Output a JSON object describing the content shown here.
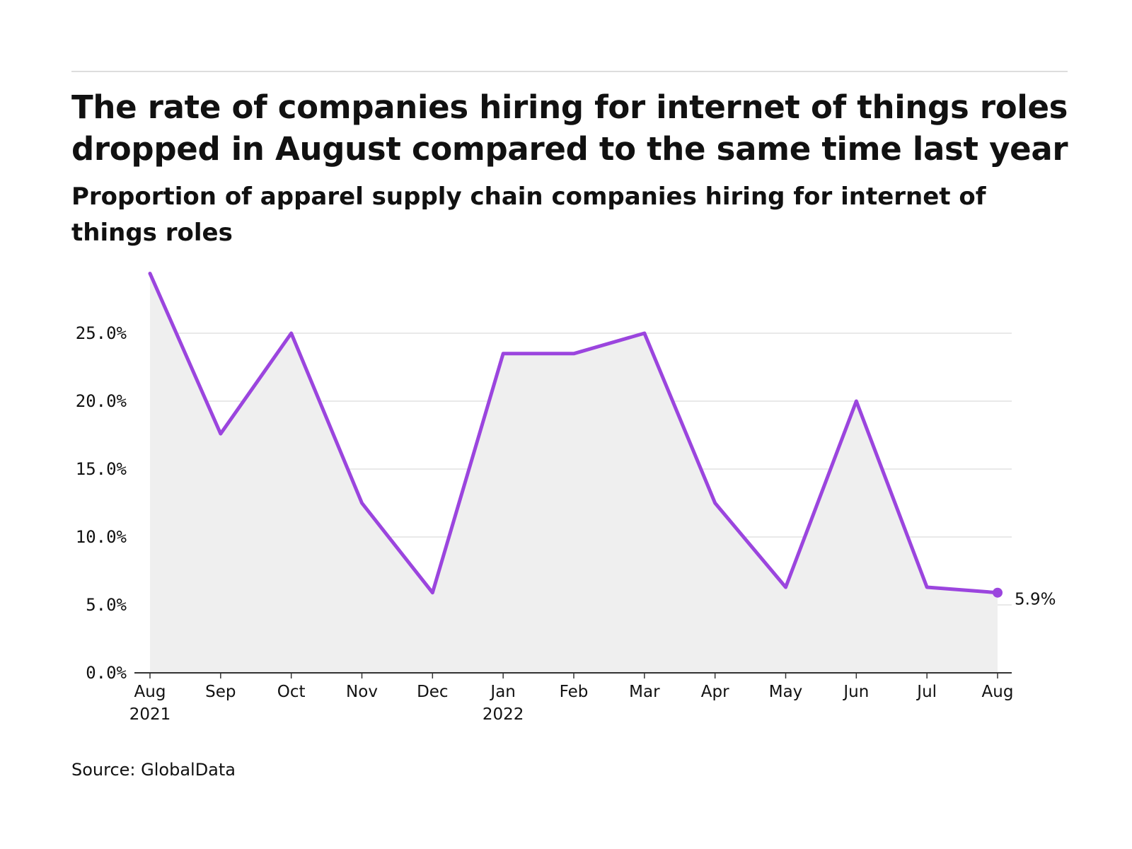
{
  "title": "The rate of companies hiring for internet of things roles dropped in August compared to the same time last year",
  "subtitle": "Proportion of apparel supply chain companies hiring for internet of things roles",
  "source": "Source: GlobalData",
  "colors": {
    "line": "#9b45de",
    "area": "#efefef",
    "grid": "#e2e2e2",
    "axis": "#333333"
  },
  "chart_data": {
    "type": "line",
    "x": [
      "Aug 2021",
      "Sep 2021",
      "Oct 2021",
      "Nov 2021",
      "Dec 2021",
      "Jan 2022",
      "Feb 2022",
      "Mar 2022",
      "Apr 2022",
      "May 2022",
      "Jun 2022",
      "Jul 2022",
      "Aug 2022"
    ],
    "x_tick_labels": [
      [
        "Aug",
        "2021"
      ],
      [
        "Sep"
      ],
      [
        "Oct"
      ],
      [
        "Nov"
      ],
      [
        "Dec"
      ],
      [
        "Jan",
        "2022"
      ],
      [
        "Feb"
      ],
      [
        "Mar"
      ],
      [
        "Apr"
      ],
      [
        "May"
      ],
      [
        "Jun"
      ],
      [
        "Jul"
      ],
      [
        "Aug"
      ]
    ],
    "series": [
      {
        "values": [
          29.4,
          17.6,
          25.0,
          12.5,
          5.9,
          23.5,
          23.5,
          25.0,
          12.5,
          6.3,
          20.0,
          6.3,
          5.9
        ]
      }
    ],
    "y_ticks": [
      0,
      5,
      10,
      15,
      20,
      25
    ],
    "y_tick_labels": [
      "0.0%",
      "5.0%",
      "10.0%",
      "15.0%",
      "20.0%",
      "25.0%"
    ],
    "ylim": [
      0,
      30
    ],
    "grid": true,
    "area_fill": true,
    "end_label": "5.9%",
    "xlabel": "",
    "ylabel": ""
  }
}
